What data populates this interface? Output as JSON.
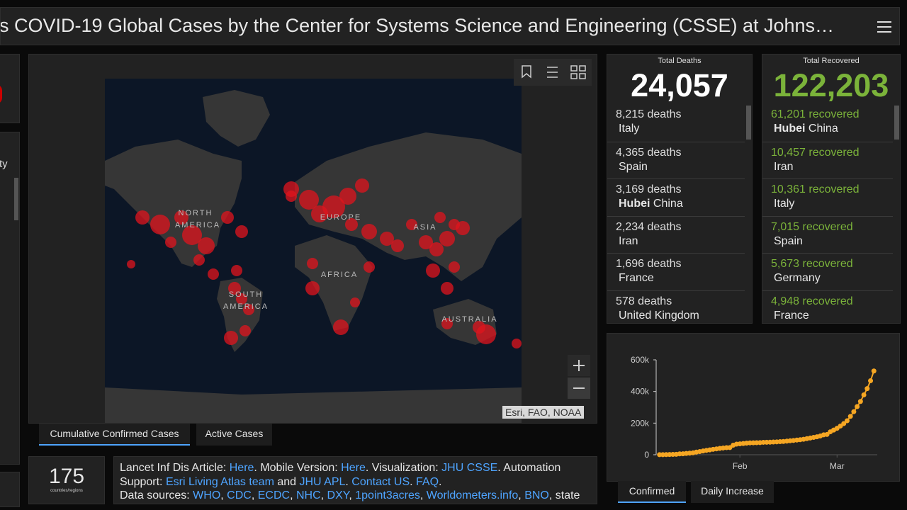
{
  "header": {
    "title": "s COVID-19 Global Cases by the Center for Systems Science and Engineering (CSSE) at Johns…"
  },
  "left_panel": {
    "header": "ty"
  },
  "map": {
    "labels": [
      "NORTH",
      "AMERICA",
      "EUROPE",
      "ASIA",
      "AFRICA",
      "SOUTH",
      "AMERICA",
      "AUSTRALIA"
    ],
    "attribution": "Esri, FAO, NOAA",
    "tabs": [
      "Cumulative Confirmed Cases",
      "Active Cases"
    ]
  },
  "countries": {
    "value": "175",
    "label": "countries/regions"
  },
  "info": {
    "lines": [
      [
        {
          "text": "Lancet Inf Dis Article: "
        },
        {
          "text": "Here",
          "link": true
        },
        {
          "text": ". Mobile Version: "
        },
        {
          "text": "Here",
          "link": true
        },
        {
          "text": ". Visualization: "
        },
        {
          "text": "JHU CSSE",
          "link": true
        },
        {
          "text": ". Automation"
        }
      ],
      [
        {
          "text": "Support: "
        },
        {
          "text": "Esri Living Atlas team",
          "link": true
        },
        {
          "text": " and "
        },
        {
          "text": "JHU APL",
          "link": true
        },
        {
          "text": ". "
        },
        {
          "text": "Contact US",
          "link": true
        },
        {
          "text": ". "
        },
        {
          "text": "FAQ",
          "link": true
        },
        {
          "text": "."
        }
      ],
      [
        {
          "text": "Data sources: "
        },
        {
          "text": "WHO",
          "link": true
        },
        {
          "text": ", "
        },
        {
          "text": "CDC",
          "link": true
        },
        {
          "text": ", "
        },
        {
          "text": "ECDC",
          "link": true
        },
        {
          "text": ", "
        },
        {
          "text": "NHC",
          "link": true
        },
        {
          "text": ", "
        },
        {
          "text": "DXY",
          "link": true
        },
        {
          "text": ", "
        },
        {
          "text": "1point3acres",
          "link": true
        },
        {
          "text": ", "
        },
        {
          "text": "Worldometers.info",
          "link": true
        },
        {
          "text": ", "
        },
        {
          "text": "BNO",
          "link": true
        },
        {
          "text": ", state"
        }
      ]
    ]
  },
  "deaths": {
    "label": "Total Deaths",
    "total": "24,057",
    "unit": "deaths",
    "items": [
      {
        "count": "8,215",
        "place": "Italy"
      },
      {
        "count": "4,365",
        "place": "Spain"
      },
      {
        "count": "3,169",
        "region": "Hubei",
        "place": "China"
      },
      {
        "count": "2,234",
        "place": "Iran"
      },
      {
        "count": "1,696",
        "place": "France"
      },
      {
        "count": "578",
        "place": "United Kingdom"
      }
    ]
  },
  "recovered": {
    "label": "Total Recovered",
    "total": "122,203",
    "unit": "recovered",
    "items": [
      {
        "count": "61,201",
        "region": "Hubei",
        "place": "China"
      },
      {
        "count": "10,457",
        "place": "Iran"
      },
      {
        "count": "10,361",
        "place": "Italy"
      },
      {
        "count": "7,015",
        "place": "Spain"
      },
      {
        "count": "5,673",
        "place": "Germany"
      },
      {
        "count": "4,948",
        "place": "France"
      }
    ]
  },
  "chart_data": {
    "type": "line",
    "color": "#f5a623",
    "values": [
      555,
      654,
      941,
      1434,
      2118,
      2927,
      5578,
      6166,
      8234,
      9927,
      12038,
      16787,
      19881,
      23892,
      27635,
      30794,
      34391,
      37120,
      40150,
      42762,
      44802,
      45221,
      60368,
      66885,
      69030,
      71224,
      73258,
      75136,
      75639,
      76197,
      76819,
      78572,
      78958,
      79561,
      80406,
      81388,
      82746,
      84112,
      86011,
      88369,
      90306,
      92840,
      95120,
      97886,
      101801,
      105847,
      109821,
      113590,
      118620,
      125875,
      128352,
      145205,
      156101,
      167454,
      181574,
      197102,
      214821,
      242570,
      272208,
      304507,
      336953,
      378235,
      418045,
      467653,
      529591
    ],
    "xlim": [
      -1,
      65
    ],
    "xticks": [
      {
        "value": 24,
        "label": "Feb"
      },
      {
        "value": 53,
        "label": "Mar"
      }
    ],
    "ylim": [
      0,
      600000
    ],
    "yticks": [
      0,
      {
        "value": 200000,
        "label": "200k"
      },
      {
        "value": 400000,
        "label": "400k"
      },
      {
        "value": 600000,
        "label": "600k"
      }
    ],
    "tabs": [
      "Confirmed",
      "Daily Increase"
    ]
  }
}
